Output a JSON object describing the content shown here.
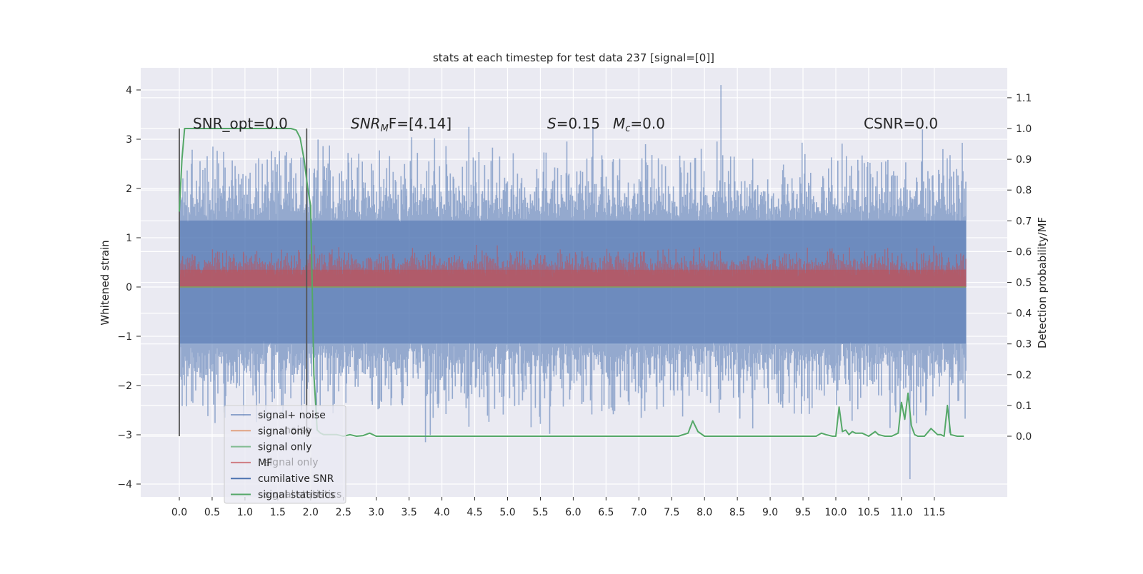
{
  "chart_data": {
    "type": "line",
    "title": "stats at each timestep for test data 237 [signal=[0]]",
    "xlabel": "",
    "ylabel": "Whitened strain",
    "y2label": "Detection probability/MF",
    "xlim": [
      -0.58,
      12.6
    ],
    "ylim": [
      -4.2,
      4.4
    ],
    "y2lim": [
      -0.19,
      1.2
    ],
    "x_ticks": [
      "0.0",
      "0.5",
      "1.0",
      "1.5",
      "2.0",
      "2.5",
      "3.0",
      "3.5",
      "4.0",
      "4.5",
      "5.0",
      "5.5",
      "6.0",
      "6.5",
      "7.0",
      "7.5",
      "8.0",
      "8.5",
      "9.0",
      "9.5",
      "10.0",
      "10.5",
      "11.0",
      "11.5"
    ],
    "y_ticks": [
      "4",
      "3",
      "2",
      "1",
      "0",
      "−1",
      "−2",
      "−3",
      "−4"
    ],
    "y2_ticks": [
      "1.1",
      "1.0",
      "0.9",
      "0.8",
      "0.7",
      "0.6",
      "0.5",
      "0.4",
      "0.3",
      "0.2",
      "0.1",
      "0.0"
    ],
    "grid": true,
    "legend_position": "lower-left",
    "annotations": [
      {
        "text": "SNR_opt=0.0",
        "math": false
      },
      {
        "text": "SNR",
        "sub": "M",
        "tail": "F=[4.14]",
        "math": true
      },
      {
        "text": "S",
        "tail": "=0.15",
        "math": true
      },
      {
        "text": "M",
        "sub": "c",
        "tail": "=0.0",
        "math": true
      },
      {
        "text": "CSNR=0.0",
        "math": false
      }
    ],
    "vertical_markers_x": [
      0.0,
      1.94
    ],
    "legend_ghost_text": [
      "noise",
      "signal only",
      "signal statistics"
    ],
    "series": [
      {
        "name": "signal+ noise",
        "color": "#4c72b0",
        "alpha": 0.5,
        "axis": "left",
        "description_values": {
          "typical_min": -2.0,
          "typical_max": 2.3,
          "peaks": [
            [
              4.41,
              3.25
            ],
            [
              6.3,
              3.25
            ],
            [
              8.25,
              4.1
            ],
            [
              11.32,
              3.2
            ],
            [
              11.13,
              -3.9
            ],
            [
              3.75,
              -3.15
            ]
          ]
        }
      },
      {
        "name": "signal only",
        "color": "#dd8452",
        "axis": "left",
        "values_flat": 0.0
      },
      {
        "name": "signal only",
        "color": "#55a868",
        "alpha": 0.6,
        "axis": "left",
        "values_flat": 0.0
      },
      {
        "name": "MF",
        "color": "#c44e52",
        "alpha": 0.6,
        "axis": "left",
        "band": [
          0.0,
          0.6
        ]
      },
      {
        "name": "cumilative SNR",
        "color": "#4c72b0",
        "axis": "left"
      },
      {
        "name": "signal statistics",
        "color": "#55a868",
        "axis": "right",
        "x": [
          0.0,
          0.04,
          0.08,
          0.12,
          0.3,
          0.6,
          1.0,
          1.4,
          1.6,
          1.7,
          1.78,
          1.84,
          1.9,
          1.96,
          2.0,
          2.05,
          2.1,
          2.15,
          2.2,
          2.3,
          2.4,
          2.5,
          2.6,
          2.7,
          2.8,
          2.9,
          3.0,
          3.5,
          4.0,
          5.0,
          6.0,
          7.0,
          7.4,
          7.6,
          7.75,
          7.82,
          7.9,
          8.0,
          8.5,
          9.0,
          9.5,
          9.7,
          9.78,
          9.85,
          9.95,
          10.0,
          10.05,
          10.1,
          10.15,
          10.2,
          10.25,
          10.3,
          10.35,
          10.4,
          10.5,
          10.6,
          10.65,
          10.75,
          10.85,
          10.95,
          11.0,
          11.05,
          11.1,
          11.15,
          11.2,
          11.25,
          11.3,
          11.35,
          11.45,
          11.55,
          11.6,
          11.65,
          11.7,
          11.75,
          11.85,
          11.9,
          11.95
        ],
        "values": [
          0.73,
          0.9,
          1.0,
          1.0,
          1.0,
          1.0,
          1.0,
          1.0,
          1.0,
          1.0,
          0.995,
          0.97,
          0.9,
          0.8,
          0.75,
          0.2,
          0.02,
          0.01,
          0.005,
          0.005,
          0.005,
          0.0,
          0.005,
          0.0,
          0.002,
          0.01,
          0.0,
          0.0,
          0.0,
          0.0,
          0.0,
          0.0,
          0.0,
          0.0,
          0.01,
          0.05,
          0.015,
          0.0,
          0.0,
          0.0,
          0.0,
          0.0,
          0.01,
          0.005,
          0.0,
          0.0,
          0.095,
          0.015,
          0.02,
          0.005,
          0.015,
          0.01,
          0.01,
          0.01,
          0.0,
          0.015,
          0.005,
          0.0,
          0.0,
          0.01,
          0.11,
          0.055,
          0.14,
          0.035,
          0.005,
          0.0,
          0.0,
          0.0,
          0.025,
          0.005,
          0.005,
          0.0,
          0.1,
          0.005,
          0.0,
          0.0,
          0.0
        ]
      }
    ]
  }
}
